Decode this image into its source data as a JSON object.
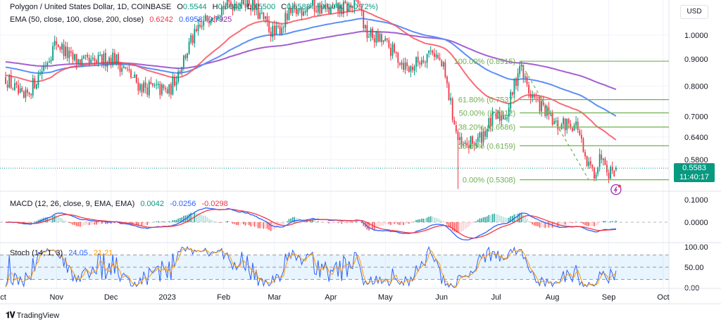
{
  "header": {
    "symbol": "Polygon / United States Dollar, 1D, COINBASE",
    "open_label": "O",
    "open": "0.5544",
    "high_label": "H",
    "high": "0.5640",
    "low_label": "L",
    "low": "0.5500",
    "close_label": "C",
    "close": "0.5583",
    "change": "+0.0040 (+0.72%)"
  },
  "ema_legend": {
    "label": "EMA (50, close, 100, close, 200, close)",
    "ema50": "0.6242",
    "ema100": "0.6958",
    "ema200": "0.7925"
  },
  "macd_legend": {
    "label": "MACD (12, 26, close, 9, EMA, EMA)",
    "hist": "0.0042",
    "macd": "-0.0256",
    "signal": "-0.0298"
  },
  "stoch_legend": {
    "label": "Stoch (14, 1, 3)",
    "k": "24.05",
    "d": "21.21"
  },
  "currency": "USD",
  "last_price": {
    "price": "0.5583",
    "countdown": "11:40:17"
  },
  "brand": "TradingView",
  "colors": {
    "up": "#089981",
    "down": "#f23645",
    "ema50": "#f7525f",
    "ema100": "#5b8ff9",
    "ema200": "#a55fd0",
    "fib": "#6fb04f",
    "stoch_k": "#2962ff",
    "stoch_d": "#ff9800"
  },
  "chart_data": {
    "type": "candlestick",
    "scale": "log",
    "grid": true,
    "price_ticks": [
      "1.0000",
      "0.9000",
      "0.8000",
      "0.7000",
      "0.6400",
      "0.5800"
    ],
    "macd_ticks": [
      "0.1000",
      "0.0000"
    ],
    "stoch_ticks": [
      "100.00",
      "50.00",
      "0.00"
    ],
    "time_ticks": [
      {
        "label": "Oct",
        "date": "2022-10-01"
      },
      {
        "label": "Nov",
        "date": "2022-11-01"
      },
      {
        "label": "Dec",
        "date": "2022-12-01"
      },
      {
        "label": "2023",
        "date": "2023-01-01"
      },
      {
        "label": "Feb",
        "date": "2023-02-01"
      },
      {
        "label": "Mar",
        "date": "2023-03-01"
      },
      {
        "label": "Apr",
        "date": "2023-04-01"
      },
      {
        "label": "May",
        "date": "2023-05-01"
      },
      {
        "label": "Jun",
        "date": "2023-06-01"
      },
      {
        "label": "Jul",
        "date": "2023-07-01"
      },
      {
        "label": "Aug",
        "date": "2023-08-01"
      },
      {
        "label": "Sep",
        "date": "2023-09-01"
      },
      {
        "label": "Oct",
        "date": "2023-10-01"
      }
    ],
    "close_path": [
      {
        "date": "2022-10-04",
        "close": 0.83
      },
      {
        "date": "2022-10-14",
        "close": 0.75
      },
      {
        "date": "2022-10-24",
        "close": 0.86
      },
      {
        "date": "2022-11-01",
        "close": 0.97
      },
      {
        "date": "2022-11-09",
        "close": 0.9
      },
      {
        "date": "2022-11-20",
        "close": 0.88
      },
      {
        "date": "2022-12-02",
        "close": 0.91
      },
      {
        "date": "2022-12-17",
        "close": 0.8
      },
      {
        "date": "2023-01-02",
        "close": 0.78
      },
      {
        "date": "2023-01-14",
        "close": 0.97
      },
      {
        "date": "2023-01-25",
        "close": 1.1
      },
      {
        "date": "2023-02-02",
        "close": 1.14
      },
      {
        "date": "2023-02-14",
        "close": 1.17
      },
      {
        "date": "2023-03-01",
        "close": 1.0
      },
      {
        "date": "2023-03-09",
        "close": 1.09
      },
      {
        "date": "2023-03-20",
        "close": 1.14
      },
      {
        "date": "2023-04-01",
        "close": 1.11
      },
      {
        "date": "2023-04-17",
        "close": 1.14
      },
      {
        "date": "2023-04-20",
        "close": 1.01
      },
      {
        "date": "2023-04-30",
        "close": 0.97
      },
      {
        "date": "2023-05-14",
        "close": 0.86
      },
      {
        "date": "2023-05-27",
        "close": 0.94
      },
      {
        "date": "2023-06-02",
        "close": 0.86
      },
      {
        "date": "2023-06-10",
        "close": 0.63
      },
      {
        "date": "2023-06-12",
        "close": 0.61
      },
      {
        "date": "2023-06-21",
        "close": 0.63
      },
      {
        "date": "2023-06-29",
        "close": 0.69
      },
      {
        "date": "2023-07-07",
        "close": 0.71
      },
      {
        "date": "2023-07-14",
        "close": 0.88
      },
      {
        "date": "2023-07-19",
        "close": 0.78
      },
      {
        "date": "2023-07-26",
        "close": 0.73
      },
      {
        "date": "2023-08-03",
        "close": 0.67
      },
      {
        "date": "2023-08-11",
        "close": 0.68
      },
      {
        "date": "2023-08-15",
        "close": 0.67
      },
      {
        "date": "2023-08-19",
        "close": 0.57
      },
      {
        "date": "2023-08-24",
        "close": 0.55
      },
      {
        "date": "2023-08-29",
        "close": 0.6
      },
      {
        "date": "2023-09-01",
        "close": 0.55
      },
      {
        "date": "2023-09-05",
        "close": 0.5583
      }
    ],
    "notable_low": {
      "date": "2023-06-10",
      "low": 0.51
    },
    "fib_levels": [
      {
        "label": "100.00% (0.8915)",
        "price": 0.8915
      },
      {
        "label": "61.80% (0.7537)",
        "price": 0.7537
      },
      {
        "label": "50.00% (0.7112)",
        "price": 0.7112
      },
      {
        "label": "38.20% (0.6686)",
        "price": 0.6686
      },
      {
        "label": "23.60% (0.6159)",
        "price": 0.6159
      },
      {
        "label": "0.00% (0.5308)",
        "price": 0.5308
      }
    ],
    "fib_anchor": {
      "from": {
        "date": "2023-07-14",
        "price": 0.8915
      },
      "to": {
        "date": "2023-08-21",
        "price": 0.5308
      }
    }
  }
}
